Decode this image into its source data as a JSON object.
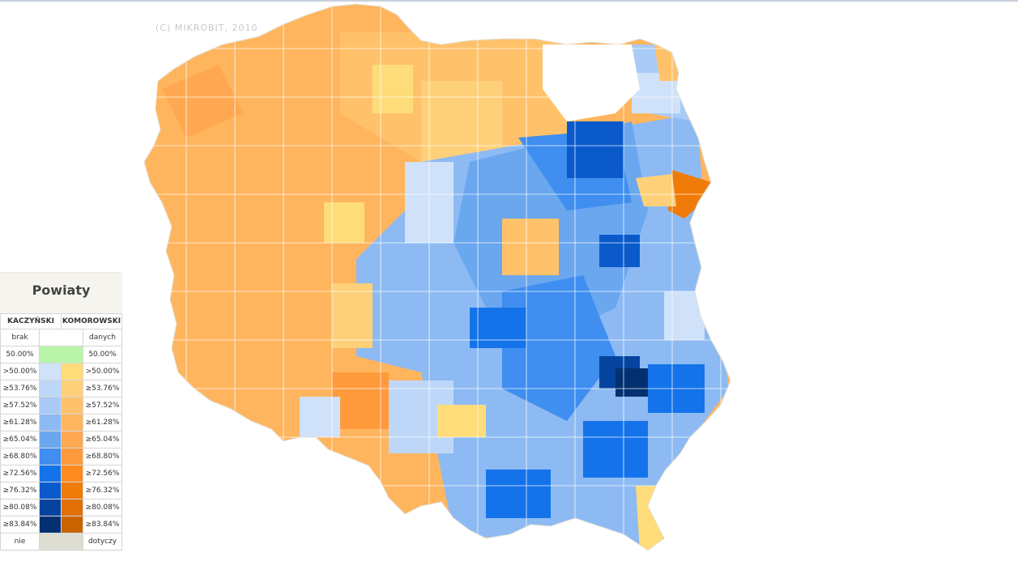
{
  "copyright": "(C) MIKROBIT, 2010",
  "legend": {
    "title": "Powiaty",
    "header_left": "KACZYŃSKI",
    "header_right": "KOMOROWSKI",
    "rows": [
      {
        "left": "brak",
        "right": "danych",
        "kacz_color": "#ffffff",
        "komo_color": "#ffffff"
      },
      {
        "left": "50.00%",
        "right": "50.00%",
        "kacz_color": "#b9f5a8",
        "komo_color": "#b9f5a8"
      },
      {
        "left": ">50.00%",
        "right": ">50.00%",
        "kacz_color": "#cfe2fa",
        "komo_color": "#ffdc7a"
      },
      {
        "left": "≥53.76%",
        "right": "≥53.76%",
        "kacz_color": "#bed7f8",
        "komo_color": "#ffd07a"
      },
      {
        "left": "≥57.52%",
        "right": "≥57.52%",
        "kacz_color": "#a9cbf6",
        "komo_color": "#ffc26b"
      },
      {
        "left": "≥61.28%",
        "right": "≥61.28%",
        "kacz_color": "#8dbaf3",
        "komo_color": "#ffb55e"
      },
      {
        "left": "≥65.04%",
        "right": "≥65.04%",
        "kacz_color": "#6aa7ef",
        "komo_color": "#ffa851"
      },
      {
        "left": "≥68.80%",
        "right": "≥68.80%",
        "kacz_color": "#3f8ef0",
        "komo_color": "#ff9a3c"
      },
      {
        "left": "≥72.56%",
        "right": "≥72.56%",
        "kacz_color": "#1473ea",
        "komo_color": "#ff8a1e"
      },
      {
        "left": "≥76.32%",
        "right": "≥76.32%",
        "kacz_color": "#0a5acc",
        "komo_color": "#f17b08"
      },
      {
        "left": "≥80.08%",
        "right": "≥80.08%",
        "kacz_color": "#05449e",
        "komo_color": "#e06f05"
      },
      {
        "left": "≥83.84%",
        "right": "≥83.84%",
        "kacz_color": "#023070",
        "komo_color": "#c96300"
      },
      {
        "left": "nie",
        "right": "dotyczy",
        "kacz_color": "#deddd2",
        "komo_color": "#deddd2"
      }
    ]
  },
  "colors": {
    "boundary": "#ffffff",
    "nodata": "#ffffff"
  }
}
